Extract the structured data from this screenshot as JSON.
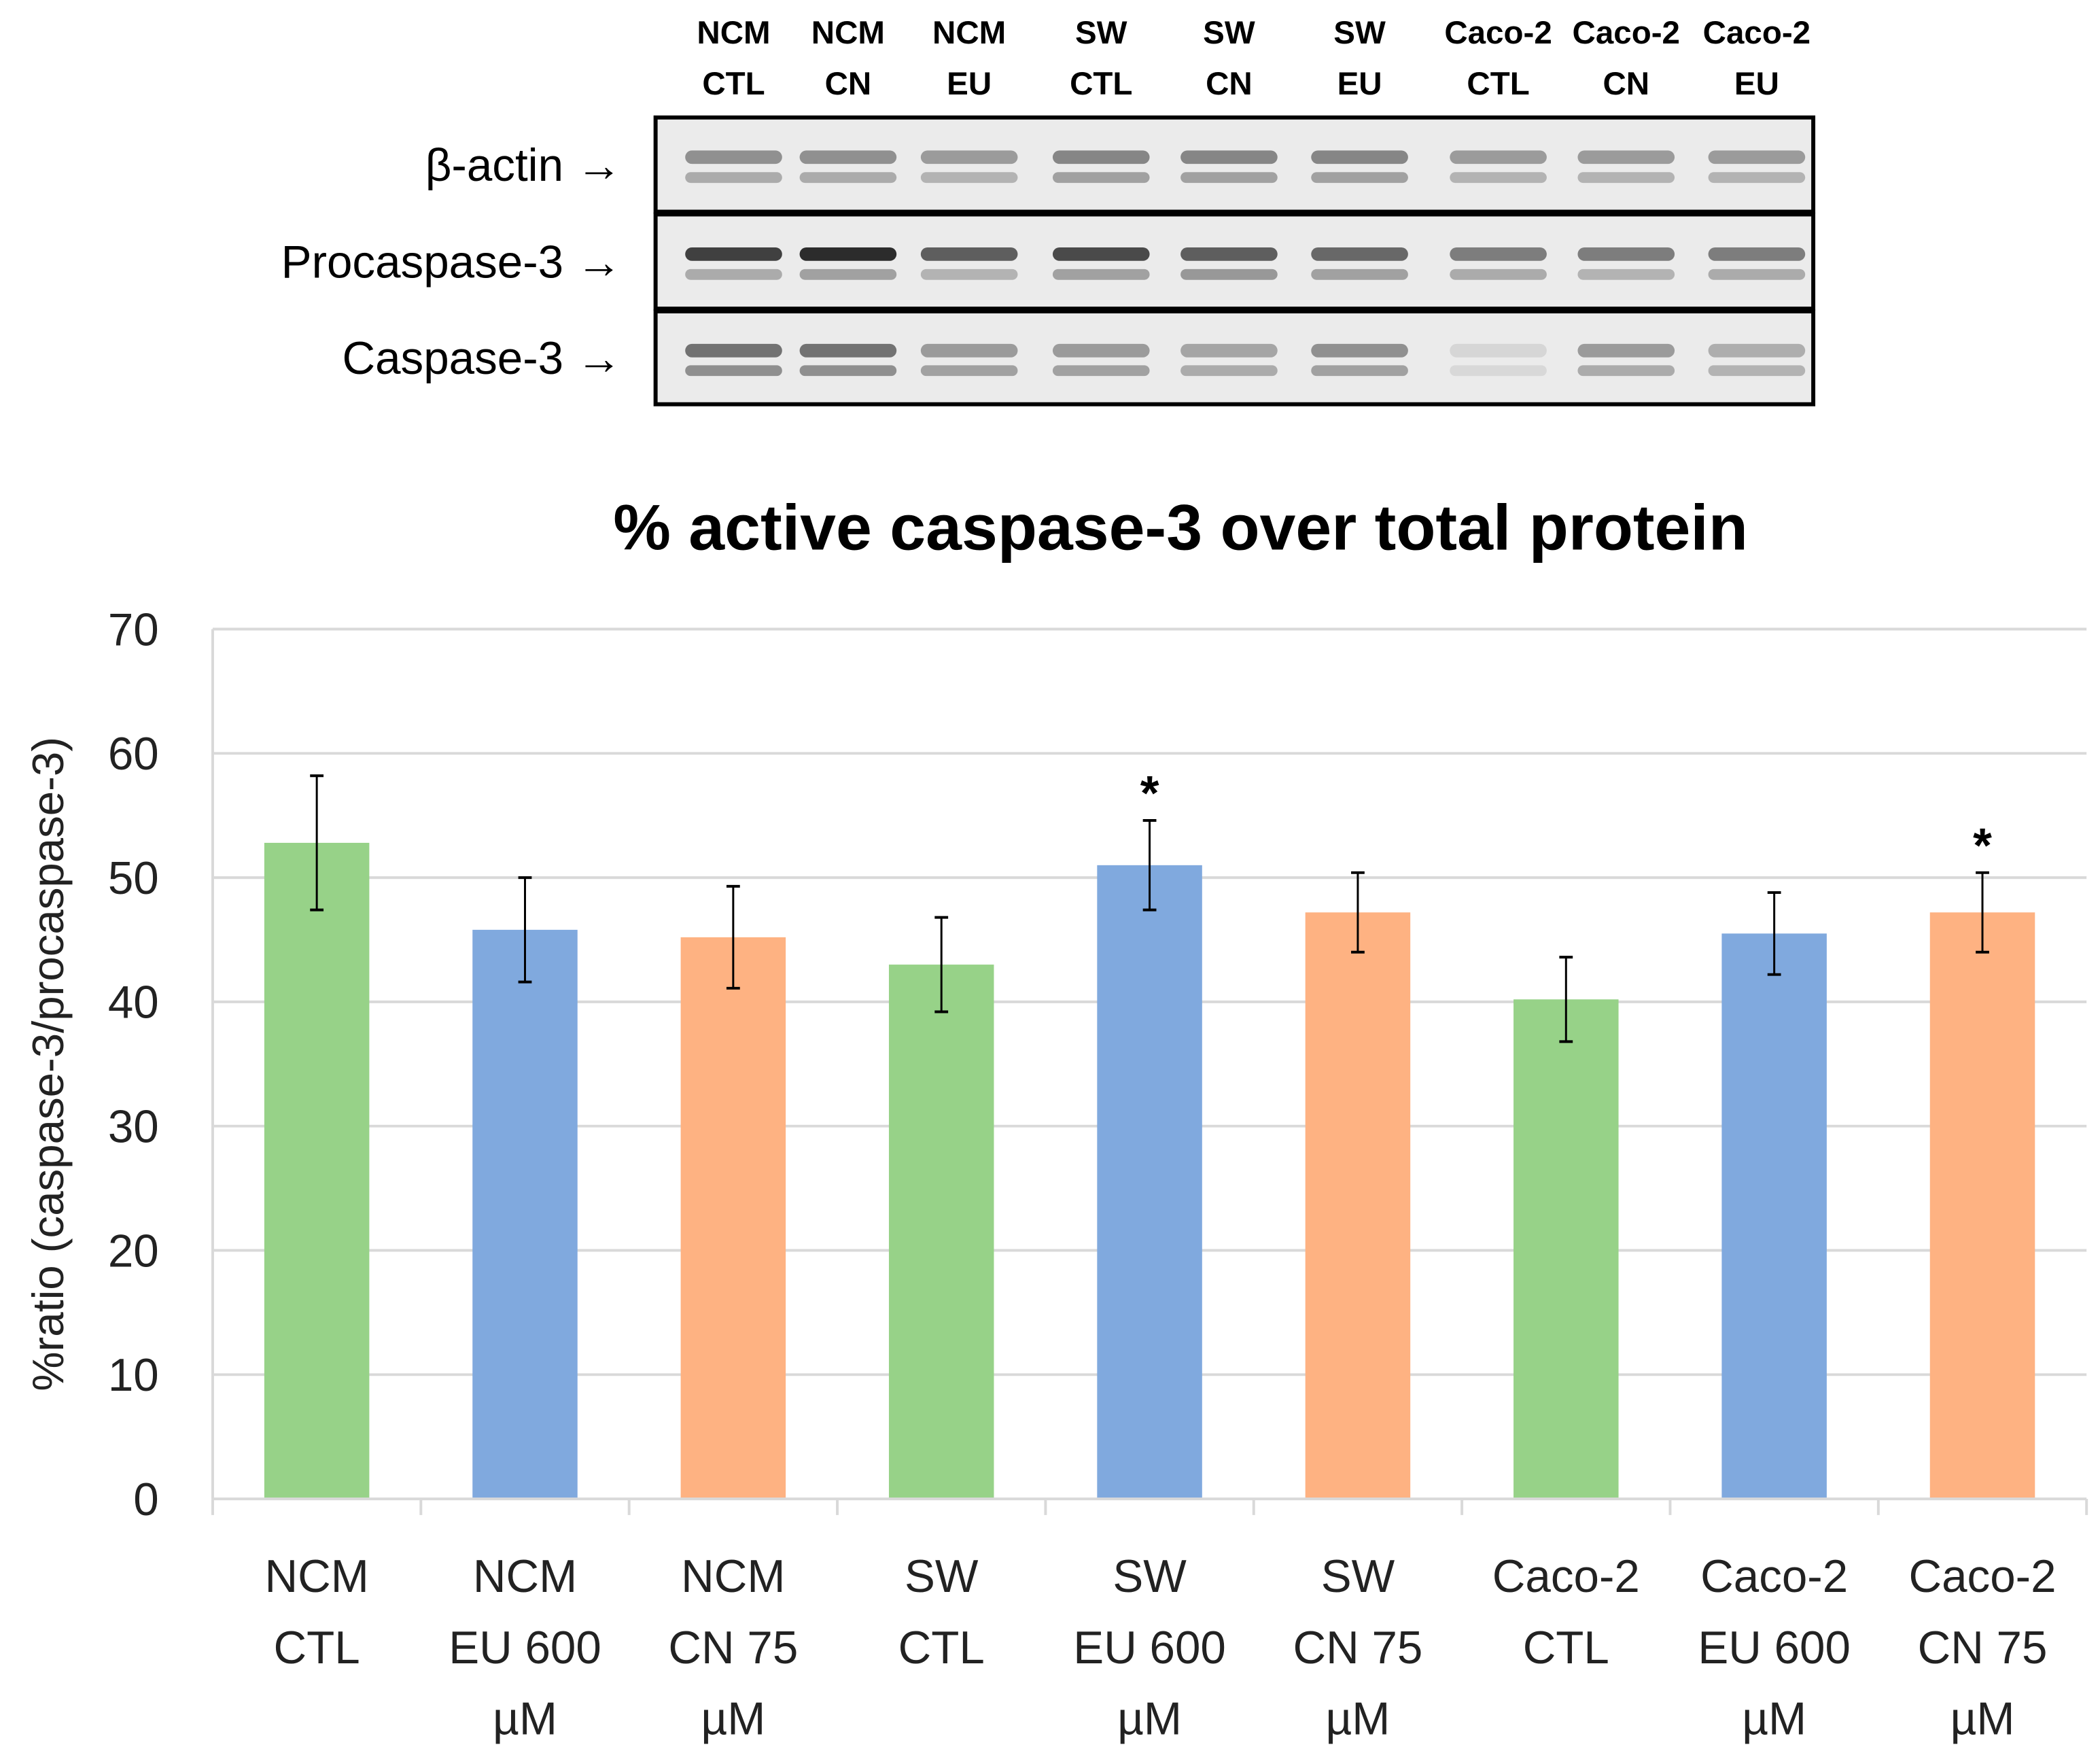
{
  "blot": {
    "lanes": [
      [
        "NCM",
        "CTL"
      ],
      [
        "NCM",
        "CN"
      ],
      [
        "NCM",
        "EU"
      ],
      [
        "SW",
        "CTL"
      ],
      [
        "SW",
        "CN"
      ],
      [
        "SW",
        "EU"
      ],
      [
        "Caco-2",
        "CTL"
      ],
      [
        "Caco-2",
        "CN"
      ],
      [
        "Caco-2",
        "EU"
      ]
    ],
    "rows": [
      "β-actin →",
      "Procaspase-3 →",
      "Caspase-3 →"
    ]
  },
  "chart_data": {
    "type": "bar",
    "title": "% active caspase-3 over total protein",
    "xlabel": "",
    "ylabel": "%ratio (caspase-3/procaspase-3)",
    "ylim": [
      0,
      70
    ],
    "yticks": [
      "0",
      "10",
      "20",
      "30",
      "40",
      "50",
      "60",
      "70"
    ],
    "grid": true,
    "categories": [
      [
        "NCM",
        "CTL"
      ],
      [
        "NCM",
        "EU 600",
        "µM"
      ],
      [
        "NCM",
        "CN 75",
        "µM"
      ],
      [
        "SW",
        "CTL"
      ],
      [
        "SW",
        "EU 600",
        "µM"
      ],
      [
        "SW",
        "CN 75",
        "µM"
      ],
      [
        "Caco-2",
        "CTL"
      ],
      [
        "Caco-2",
        "EU 600",
        "µM"
      ],
      [
        "Caco-2",
        "CN 75",
        "µM"
      ]
    ],
    "values": [
      52.8,
      45.8,
      45.2,
      43.0,
      51.0,
      47.2,
      40.2,
      45.5,
      47.2
    ],
    "errors": [
      5.4,
      4.2,
      4.1,
      3.8,
      3.6,
      3.2,
      3.4,
      3.3,
      3.2
    ],
    "significance": [
      "",
      "",
      "",
      "",
      "*",
      "",
      "",
      "",
      "*"
    ],
    "colors": [
      "#97d288",
      "#80a9de",
      "#feb282",
      "#97d288",
      "#80a9de",
      "#feb282",
      "#97d288",
      "#80a9de",
      "#feb282"
    ],
    "gridColor": "#d9d9d9"
  }
}
